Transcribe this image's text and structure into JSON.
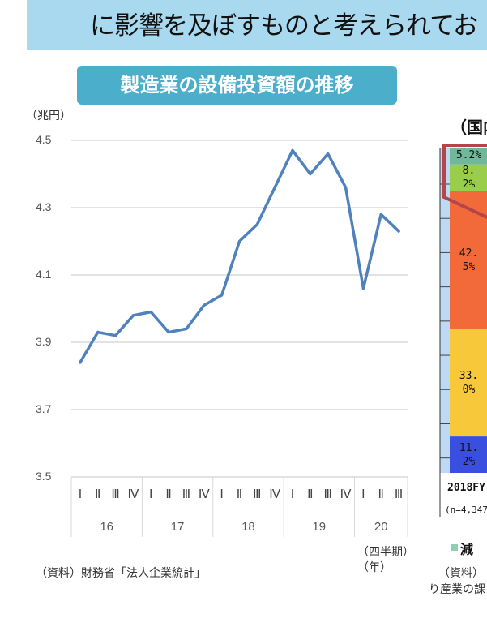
{
  "header": {
    "title": "に影響を及ぼすものと考えられてお"
  },
  "left_panel": {
    "badge": "製造業の設備投資額の推移",
    "y_unit": "（兆円）",
    "x_unit_quarter": "（四半期）",
    "x_unit_year": "（年）",
    "source": "（資料）財務省「法人企業統計」"
  },
  "chart_data": [
    {
      "type": "line",
      "title": "製造業の設備投資額の推移",
      "ylabel": "（兆円）",
      "xlabel": "（四半期）（年）",
      "ylim": [
        3.5,
        4.5
      ],
      "yticks": [
        "3.5",
        "3.7",
        "3.9",
        "4.1",
        "4.3",
        "4.5"
      ],
      "grid": true,
      "color": "#4f81bd",
      "quarters": [
        "Ⅰ",
        "Ⅱ",
        "Ⅲ",
        "Ⅳ",
        "Ⅰ",
        "Ⅱ",
        "Ⅲ",
        "Ⅳ",
        "Ⅰ",
        "Ⅱ",
        "Ⅲ",
        "Ⅳ",
        "Ⅰ",
        "Ⅱ",
        "Ⅲ",
        "Ⅳ",
        "Ⅰ",
        "Ⅱ",
        "Ⅲ"
      ],
      "years": [
        {
          "label": "16",
          "quarters": 4
        },
        {
          "label": "17",
          "quarters": 4
        },
        {
          "label": "18",
          "quarters": 4
        },
        {
          "label": "19",
          "quarters": 4
        },
        {
          "label": "20",
          "quarters": 3
        }
      ],
      "values": [
        3.84,
        3.93,
        3.92,
        3.98,
        3.99,
        3.93,
        3.94,
        4.01,
        4.04,
        4.2,
        4.25,
        4.36,
        4.47,
        4.4,
        4.46,
        4.36,
        4.06,
        4.28,
        4.23
      ]
    },
    {
      "type": "bar",
      "title": "（国内",
      "categories": [
        "2018FY"
      ],
      "n_label": "(n=4,347",
      "segments": [
        {
          "label": "5.2%",
          "value": 5.2,
          "color": "#6fb89a"
        },
        {
          "label": "8.2%",
          "value": 8.2,
          "color": "#9acd4a"
        },
        {
          "label": "42.5%",
          "value": 42.5,
          "color": "#f26a3a"
        },
        {
          "label": "33.0%",
          "value": 33.0,
          "color": "#f7c93a"
        },
        {
          "label": "11.2%",
          "value": 11.2,
          "color": "#3a4fe0"
        }
      ],
      "legend": [
        "減"
      ]
    }
  ],
  "right_panel": {
    "source_line1": "（資料）",
    "source_line2": "り産業の課"
  }
}
